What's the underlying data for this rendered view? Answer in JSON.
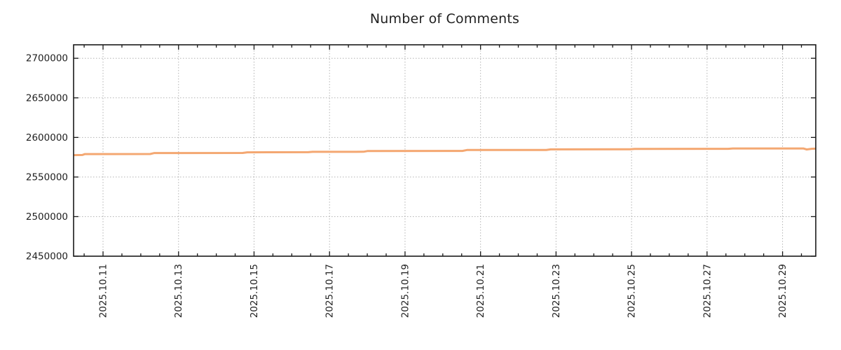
{
  "title": "Number of Comments",
  "colors": {
    "line": "#f4a771",
    "grid": "#b3b3b3",
    "axis": "#1a1a1a",
    "text": "#1f1f1f",
    "background": "#ffffff"
  },
  "chart_data": {
    "type": "line",
    "title": "Number of Comments",
    "xlabel": "",
    "ylabel": "",
    "legend": "none",
    "grid": {
      "visible": true,
      "style": "dotted"
    },
    "x_axis": {
      "note": "x values are day-of-month decimals for October 2025",
      "xlim": [
        10.22,
        29.88
      ],
      "major_tick_positions": [
        11,
        13,
        15,
        17,
        19,
        21,
        23,
        25,
        27,
        29
      ],
      "major_tick_labels": [
        "2025.10.11",
        "2025.10.13",
        "2025.10.15",
        "2025.10.17",
        "2025.10.19",
        "2025.10.21",
        "2025.10.23",
        "2025.10.25",
        "2025.10.27",
        "2025.10.29"
      ],
      "minor_tick_step_days": 0.5,
      "label_rotation_deg": 90
    },
    "y_axis": {
      "ylim": [
        2450000,
        2717000
      ],
      "major_tick_positions": [
        2450000,
        2500000,
        2550000,
        2600000,
        2650000,
        2700000
      ],
      "major_tick_labels": [
        "2450000",
        "2500000",
        "2550000",
        "2600000",
        "2650000",
        "2700000"
      ]
    },
    "series": [
      {
        "name": "Number of Comments",
        "color": "#f4a771",
        "line_width": 3,
        "x": [
          10.22,
          10.45,
          10.52,
          12.25,
          12.36,
          14.7,
          14.82,
          16.44,
          16.55,
          17.9,
          18.0,
          20.52,
          20.64,
          22.74,
          22.86,
          24.96,
          25.08,
          27.56,
          27.68,
          29.55,
          29.64,
          29.78,
          29.88
        ],
        "y": [
          2577700,
          2577800,
          2579000,
          2579100,
          2580300,
          2580400,
          2581200,
          2581400,
          2581800,
          2581900,
          2582800,
          2582950,
          2584100,
          2584200,
          2584950,
          2585050,
          2585500,
          2585600,
          2586100,
          2586100,
          2584800,
          2585700,
          2585800
        ]
      }
    ]
  }
}
